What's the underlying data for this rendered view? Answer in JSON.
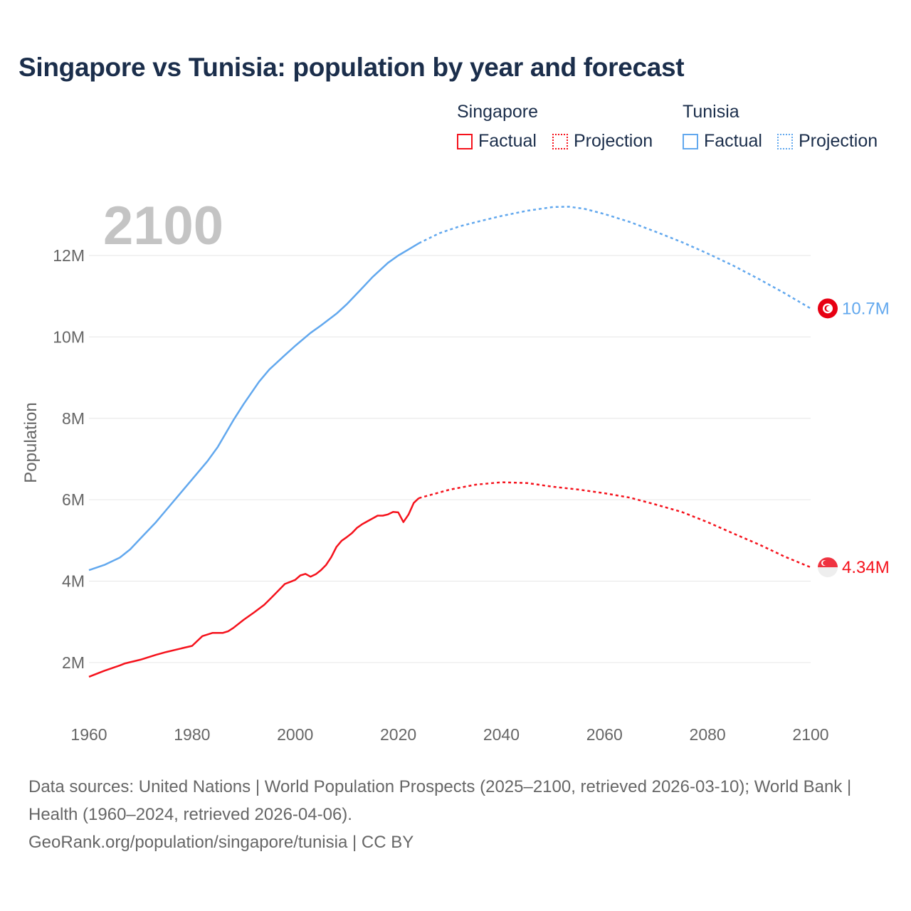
{
  "title": "Singapore vs Tunisia: population by year and forecast",
  "legend": {
    "groups": [
      {
        "name": "Singapore",
        "factual": "Factual",
        "projection": "Projection"
      },
      {
        "name": "Tunisia",
        "factual": "Factual",
        "projection": "Projection"
      }
    ]
  },
  "footer": {
    "line1": "Data sources: United Nations | World Population Prospects (2025–2100, retrieved 2026-03-10); World Bank | Health (1960–2024, retrieved 2026-04-06).",
    "line2": "GeoRank.org/population/singapore/tunisia | CC BY"
  },
  "chart_data": {
    "type": "line",
    "title": "Singapore vs Tunisia: population by year and forecast",
    "year_label": "2100",
    "xlabel": "",
    "ylabel": "Population",
    "xlim": [
      1960,
      2100
    ],
    "ylim": [
      0.6,
      13.6
    ],
    "x_ticks": [
      "1960",
      "1980",
      "2000",
      "2020",
      "2040",
      "2060",
      "2080",
      "2100"
    ],
    "y_ticks": [
      {
        "v": 2,
        "label": "2M"
      },
      {
        "v": 4,
        "label": "4M"
      },
      {
        "v": 6,
        "label": "6M"
      },
      {
        "v": 8,
        "label": "8M"
      },
      {
        "v": 10,
        "label": "10M"
      },
      {
        "v": 12,
        "label": "12M"
      }
    ],
    "units": "millions",
    "series": [
      {
        "name": "Singapore",
        "color": "#f5121c",
        "end_label": "4.34M",
        "flag": "singapore-flag",
        "factual": [
          [
            1960,
            1.65
          ],
          [
            1963,
            1.8
          ],
          [
            1966,
            1.93
          ],
          [
            1967,
            1.98
          ],
          [
            1970,
            2.07
          ],
          [
            1973,
            2.19
          ],
          [
            1975,
            2.26
          ],
          [
            1978,
            2.35
          ],
          [
            1980,
            2.41
          ],
          [
            1982,
            2.65
          ],
          [
            1984,
            2.73
          ],
          [
            1986,
            2.73
          ],
          [
            1987,
            2.77
          ],
          [
            1988,
            2.85
          ],
          [
            1990,
            3.05
          ],
          [
            1992,
            3.23
          ],
          [
            1994,
            3.42
          ],
          [
            1996,
            3.67
          ],
          [
            1998,
            3.93
          ],
          [
            1999,
            3.98
          ],
          [
            2000,
            4.03
          ],
          [
            2001,
            4.14
          ],
          [
            2002,
            4.18
          ],
          [
            2003,
            4.11
          ],
          [
            2004,
            4.17
          ],
          [
            2005,
            4.27
          ],
          [
            2006,
            4.4
          ],
          [
            2007,
            4.59
          ],
          [
            2008,
            4.84
          ],
          [
            2009,
            4.99
          ],
          [
            2010,
            5.08
          ],
          [
            2011,
            5.18
          ],
          [
            2012,
            5.31
          ],
          [
            2013,
            5.4
          ],
          [
            2014,
            5.47
          ],
          [
            2015,
            5.54
          ],
          [
            2016,
            5.61
          ],
          [
            2017,
            5.61
          ],
          [
            2018,
            5.64
          ],
          [
            2019,
            5.7
          ],
          [
            2020,
            5.69
          ],
          [
            2021,
            5.45
          ],
          [
            2022,
            5.64
          ],
          [
            2023,
            5.92
          ],
          [
            2024,
            6.04
          ]
        ],
        "projection": [
          [
            2024,
            6.04
          ],
          [
            2030,
            6.25
          ],
          [
            2035,
            6.37
          ],
          [
            2040,
            6.43
          ],
          [
            2045,
            6.41
          ],
          [
            2050,
            6.32
          ],
          [
            2055,
            6.25
          ],
          [
            2060,
            6.16
          ],
          [
            2065,
            6.05
          ],
          [
            2070,
            5.88
          ],
          [
            2075,
            5.7
          ],
          [
            2080,
            5.45
          ],
          [
            2085,
            5.17
          ],
          [
            2090,
            4.9
          ],
          [
            2095,
            4.6
          ],
          [
            2100,
            4.34
          ]
        ]
      },
      {
        "name": "Tunisia",
        "color": "#62a8ee",
        "end_label": "10.7M",
        "flag": "tunisia-flag",
        "factual": [
          [
            1960,
            4.27
          ],
          [
            1963,
            4.4
          ],
          [
            1966,
            4.58
          ],
          [
            1968,
            4.78
          ],
          [
            1970,
            5.05
          ],
          [
            1973,
            5.45
          ],
          [
            1975,
            5.75
          ],
          [
            1978,
            6.2
          ],
          [
            1980,
            6.5
          ],
          [
            1983,
            6.95
          ],
          [
            1985,
            7.3
          ],
          [
            1988,
            7.95
          ],
          [
            1990,
            8.35
          ],
          [
            1993,
            8.9
          ],
          [
            1995,
            9.2
          ],
          [
            1998,
            9.55
          ],
          [
            2000,
            9.78
          ],
          [
            2003,
            10.1
          ],
          [
            2005,
            10.28
          ],
          [
            2008,
            10.57
          ],
          [
            2010,
            10.8
          ],
          [
            2013,
            11.2
          ],
          [
            2015,
            11.47
          ],
          [
            2018,
            11.82
          ],
          [
            2020,
            12.0
          ],
          [
            2022,
            12.15
          ],
          [
            2024,
            12.3
          ]
        ],
        "projection": [
          [
            2024,
            12.3
          ],
          [
            2028,
            12.55
          ],
          [
            2032,
            12.72
          ],
          [
            2036,
            12.85
          ],
          [
            2040,
            12.97
          ],
          [
            2045,
            13.1
          ],
          [
            2050,
            13.19
          ],
          [
            2053,
            13.2
          ],
          [
            2056,
            13.15
          ],
          [
            2060,
            13.02
          ],
          [
            2065,
            12.82
          ],
          [
            2070,
            12.58
          ],
          [
            2075,
            12.33
          ],
          [
            2080,
            12.05
          ],
          [
            2085,
            11.75
          ],
          [
            2090,
            11.42
          ],
          [
            2095,
            11.07
          ],
          [
            2100,
            10.7
          ]
        ]
      }
    ]
  }
}
